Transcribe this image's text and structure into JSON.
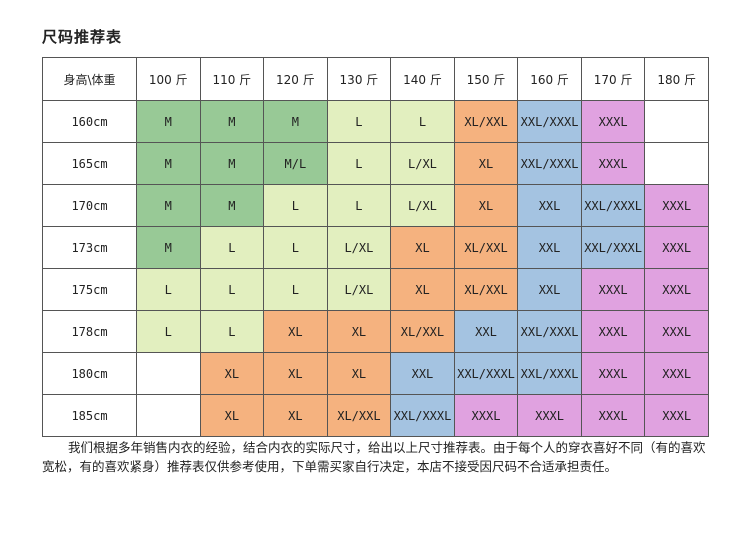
{
  "title": "尺码推荐表",
  "table": {
    "corner": "身高\\体重",
    "columns": [
      "100 斤",
      "110 斤",
      "120 斤",
      "130 斤",
      "140 斤",
      "150 斤",
      "160 斤",
      "170 斤",
      "180 斤"
    ],
    "rows": [
      {
        "height": "160cm",
        "cells": [
          "M",
          "M",
          "M",
          "L",
          "L",
          "XL/XXL",
          "XXL/XXXL",
          "XXXL",
          ""
        ]
      },
      {
        "height": "165cm",
        "cells": [
          "M",
          "M",
          "M/L",
          "L",
          "L/XL",
          "XL",
          "XXL/XXXL",
          "XXXL",
          ""
        ]
      },
      {
        "height": "170cm",
        "cells": [
          "M",
          "M",
          "L",
          "L",
          "L/XL",
          "XL",
          "XXL",
          "XXL/XXXL",
          "XXXL"
        ]
      },
      {
        "height": "173cm",
        "cells": [
          "M",
          "L",
          "L",
          "L/XL",
          "XL",
          "XL/XXL",
          "XXL",
          "XXL/XXXL",
          "XXXL"
        ]
      },
      {
        "height": "175cm",
        "cells": [
          "L",
          "L",
          "L",
          "L/XL",
          "XL",
          "XL/XXL",
          "XXL",
          "XXXL",
          "XXXL"
        ]
      },
      {
        "height": "178cm",
        "cells": [
          "L",
          "L",
          "XL",
          "XL",
          "XL/XXL",
          "XXL",
          "XXL/XXXL",
          "XXXL",
          "XXXL"
        ]
      },
      {
        "height": "180cm",
        "cells": [
          "",
          "XL",
          "XL",
          "XL",
          "XXL",
          "XXL/XXXL",
          "XXL/XXXL",
          "XXXL",
          "XXXL"
        ]
      },
      {
        "height": "185cm",
        "cells": [
          "",
          "XL",
          "XL",
          "XL/XXL",
          "XXL/XXXL",
          "XXXL",
          "XXXL",
          "XXXL",
          "XXXL"
        ]
      }
    ],
    "cell_colors": [
      [
        "green",
        "green",
        "green",
        "lgreen",
        "lgreen",
        "orange",
        "blue",
        "purple",
        "white"
      ],
      [
        "green",
        "green",
        "green",
        "lgreen",
        "lgreen",
        "orange",
        "blue",
        "purple",
        "white"
      ],
      [
        "green",
        "green",
        "lgreen",
        "lgreen",
        "lgreen",
        "orange",
        "blue",
        "blue",
        "purple"
      ],
      [
        "green",
        "lgreen",
        "lgreen",
        "lgreen",
        "orange",
        "orange",
        "blue",
        "blue",
        "purple"
      ],
      [
        "lgreen",
        "lgreen",
        "lgreen",
        "lgreen",
        "orange",
        "orange",
        "blue",
        "purple",
        "purple"
      ],
      [
        "lgreen",
        "lgreen",
        "orange",
        "orange",
        "orange",
        "blue",
        "blue",
        "purple",
        "purple"
      ],
      [
        "white",
        "orange",
        "orange",
        "orange",
        "blue",
        "blue",
        "blue",
        "purple",
        "purple"
      ],
      [
        "white",
        "orange",
        "orange",
        "orange",
        "blue",
        "purple",
        "purple",
        "purple",
        "purple"
      ]
    ]
  },
  "colors": {
    "green": "#98c996",
    "lgreen": "#e2efbf",
    "orange": "#f5b27f",
    "blue": "#a4c3e1",
    "purple": "#e0a2e0",
    "white": "#ffffff"
  },
  "note": "我们根据多年销售内衣的经验，结合内衣的实际尺寸，给出以上尺寸推荐表。由于每个人的穿衣喜好不同（有的喜欢宽松，有的喜欢紧身）推荐表仅供参考使用，下单需买家自行决定，本店不接受因尺码不合适承担责任。"
}
